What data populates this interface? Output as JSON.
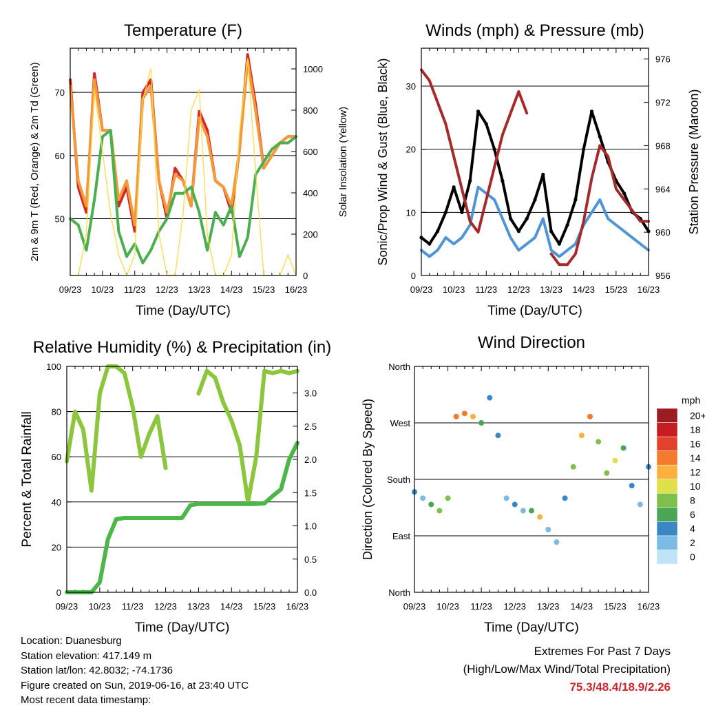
{
  "chart_data": [
    {
      "type": "line",
      "title": "Temperature (F)",
      "xlabel": "Time (Day/UTC)",
      "ylabel": "2m & 9m T (Red, Orange) & 2m Td (Green)",
      "y2label": "Solar Insolation (Yellow)",
      "x_ticks": [
        "09/23",
        "10/23",
        "11/23",
        "12/23",
        "13/23",
        "14/23",
        "15/23",
        "16/23"
      ],
      "ylim": [
        41,
        77
      ],
      "y_ticks": [
        "50",
        "60",
        "70"
      ],
      "y2lim": [
        0,
        1100
      ],
      "y2_ticks": [
        "0",
        "200",
        "400",
        "600",
        "800",
        "1000"
      ],
      "x_hours": [
        0,
        6,
        12,
        18,
        24,
        30,
        36,
        42,
        48,
        54,
        60,
        66,
        72,
        78,
        84,
        90,
        96,
        102,
        108,
        114,
        120,
        126,
        132,
        138,
        144,
        150,
        156,
        162,
        168
      ],
      "series": [
        {
          "name": "2m T",
          "color": "#d62728",
          "values": [
            72,
            55,
            51,
            73,
            64,
            64,
            52,
            55,
            48,
            70,
            72,
            56,
            50,
            58,
            56,
            52,
            67,
            64,
            56,
            55,
            51,
            61,
            76,
            68,
            58,
            60,
            62,
            63,
            63
          ]
        },
        {
          "name": "9m T",
          "color": "#f29a3b",
          "values": [
            71,
            56,
            52,
            72,
            64,
            64,
            53,
            56,
            49,
            69,
            71,
            56,
            51,
            57,
            56,
            52,
            66,
            63,
            56,
            55,
            52,
            61,
            75,
            67,
            58,
            60,
            62,
            63,
            63
          ]
        },
        {
          "name": "2m Td",
          "color": "#4bae4f",
          "values": [
            50,
            49,
            45,
            53,
            63,
            64,
            48,
            44,
            46,
            43,
            45,
            48,
            50,
            54,
            54,
            55,
            51,
            45,
            51,
            49,
            52,
            44,
            47,
            57,
            59,
            61,
            62,
            62,
            63
          ]
        },
        {
          "name": "Solar Insolation",
          "color": "#fbd842",
          "values": [
            0,
            0,
            200,
            900,
            600,
            300,
            100,
            0,
            100,
            850,
            1000,
            200,
            0,
            0,
            300,
            800,
            900,
            200,
            0,
            0,
            100,
            700,
            1050,
            500,
            0,
            0,
            0,
            100,
            0
          ]
        }
      ]
    },
    {
      "type": "line",
      "title": "Winds (mph) & Pressure (mb)",
      "xlabel": "Time (Day/UTC)",
      "ylabel": "Sonic/Prop Wind & Gust (Blue, Black)",
      "y2label": "Station Pressure (Maroon)",
      "x_ticks": [
        "09/23",
        "10/23",
        "11/23",
        "12/23",
        "13/23",
        "14/23",
        "15/23",
        "16/23"
      ],
      "ylim": [
        0,
        36
      ],
      "y_ticks": [
        "0",
        "10",
        "20",
        "30"
      ],
      "y2lim": [
        956,
        977
      ],
      "y2_ticks": [
        "956",
        "960",
        "964",
        "968",
        "972",
        "976"
      ],
      "x_hours": [
        0,
        6,
        12,
        18,
        24,
        30,
        36,
        42,
        48,
        54,
        60,
        66,
        72,
        78,
        84,
        90,
        96,
        102,
        108,
        114,
        120,
        126,
        132,
        138,
        144,
        150,
        156,
        162,
        168
      ],
      "series": [
        {
          "name": "Wind",
          "color": "#4f94d4",
          "values": [
            4,
            3,
            4,
            6,
            5,
            6,
            8,
            14,
            13,
            12,
            9,
            6,
            4,
            5,
            6,
            9,
            4,
            3,
            4,
            5,
            8,
            10,
            12,
            9,
            8,
            7,
            6,
            5,
            4
          ]
        },
        {
          "name": "Gust",
          "color": "#000000",
          "values": [
            6,
            5,
            7,
            10,
            14,
            10,
            15,
            26,
            24,
            20,
            15,
            9,
            7,
            9,
            12,
            16,
            7,
            5,
            8,
            12,
            20,
            26,
            22,
            18,
            15,
            13,
            10,
            9,
            7
          ]
        },
        {
          "name": "Station Pressure",
          "color": "#a52a2a",
          "values": [
            975,
            974,
            972,
            970,
            967,
            964,
            961,
            960,
            963,
            966,
            969,
            971,
            973,
            971,
            null,
            null,
            958,
            957,
            957,
            958,
            961,
            965,
            968,
            967,
            964,
            963,
            962,
            961,
            961
          ]
        }
      ]
    },
    {
      "type": "line",
      "title": "Relative Humidity (%) & Precipitation (in)",
      "xlabel": "Time (Day/UTC)",
      "ylabel": "Percent & Total Rainfall",
      "x_ticks": [
        "09/23",
        "10/23",
        "11/23",
        "12/23",
        "13/23",
        "14/23",
        "15/23",
        "16/23"
      ],
      "ylim": [
        0,
        100
      ],
      "y_ticks": [
        "0",
        "20",
        "40",
        "60",
        "80",
        "100"
      ],
      "y2lim": [
        0,
        3.4
      ],
      "y2_ticks": [
        "0.0",
        "0.5",
        "1.0",
        "1.5",
        "2.0",
        "2.5",
        "3.0"
      ],
      "x_hours": [
        0,
        6,
        12,
        18,
        24,
        30,
        36,
        42,
        48,
        54,
        60,
        66,
        72,
        78,
        84,
        90,
        96,
        102,
        108,
        114,
        120,
        126,
        132,
        138,
        144,
        150,
        156,
        162,
        168
      ],
      "series": [
        {
          "name": "Relative Humidity",
          "color": "#8cc63f",
          "values": [
            58,
            80,
            72,
            45,
            88,
            100,
            100,
            97,
            82,
            60,
            70,
            78,
            55,
            null,
            null,
            null,
            88,
            98,
            95,
            84,
            76,
            65,
            40,
            60,
            98,
            97,
            98,
            97,
            98
          ]
        },
        {
          "name": "Total Rainfall",
          "color": "#4bb748",
          "values": [
            0,
            0,
            0,
            0,
            0.15,
            0.8,
            1.1,
            1.12,
            1.12,
            1.12,
            1.12,
            1.12,
            1.12,
            1.12,
            1.12,
            1.31,
            1.33,
            1.33,
            1.33,
            1.33,
            1.33,
            1.33,
            1.33,
            1.33,
            1.34,
            1.45,
            1.55,
            2.0,
            2.25
          ]
        }
      ]
    },
    {
      "type": "scatter",
      "title": "Wind Direction",
      "xlabel": "Time (Day/UTC)",
      "ylabel": "Direction (Colored By Speed)",
      "x_ticks": [
        "09/23",
        "10/23",
        "11/23",
        "12/23",
        "13/23",
        "14/23",
        "15/23",
        "16/23"
      ],
      "y_ticks": [
        "North",
        "East",
        "South",
        "West",
        "North"
      ],
      "ylim": [
        0,
        360
      ],
      "colorbar": {
        "title": "mph",
        "labels": [
          "0",
          "2",
          "4",
          "6",
          "8",
          "10",
          "12",
          "14",
          "16",
          "18",
          "20+"
        ],
        "colors": [
          "#bfe3f7",
          "#7bbbe4",
          "#3d86c6",
          "#4aa555",
          "#7fbf4d",
          "#e0e04a",
          "#fbb040",
          "#f47b2b",
          "#e2412a",
          "#c71c22",
          "#9c1d1f"
        ]
      },
      "x_hours": [
        0,
        6,
        12,
        18,
        24,
        30,
        36,
        42,
        48,
        54,
        60,
        66,
        72,
        78,
        84,
        90,
        96,
        102,
        108,
        114,
        120,
        126,
        132,
        138,
        144,
        150,
        156,
        162,
        168
      ],
      "directions": [
        160,
        150,
        140,
        130,
        150,
        280,
        285,
        280,
        270,
        310,
        250,
        150,
        140,
        130,
        130,
        120,
        100,
        80,
        150,
        200,
        250,
        280,
        240,
        190,
        210,
        230,
        170,
        140,
        200
      ],
      "speeds": [
        3,
        2,
        5,
        7,
        8,
        14,
        13,
        12,
        6,
        4,
        3,
        2,
        3,
        2,
        6,
        11,
        1,
        2,
        4,
        8,
        12,
        14,
        8,
        7,
        9,
        6,
        3,
        2,
        4
      ]
    }
  ],
  "info": {
    "location": "Location: Duanesburg",
    "elevation": "Station elevation: 417.149 m",
    "latlon": "Station lat/lon: 42.8032; -74.1736",
    "created": "Figure created on Sun, 2019-06-16, at 23:40 UTC",
    "recent": "Most recent data timestamp:"
  },
  "extremes": {
    "title": "Extremes For Past 7 Days",
    "subtitle": "(High/Low/Max Wind/Total Precipitation)",
    "values": "75.3/48.4/18.9/2.26"
  }
}
